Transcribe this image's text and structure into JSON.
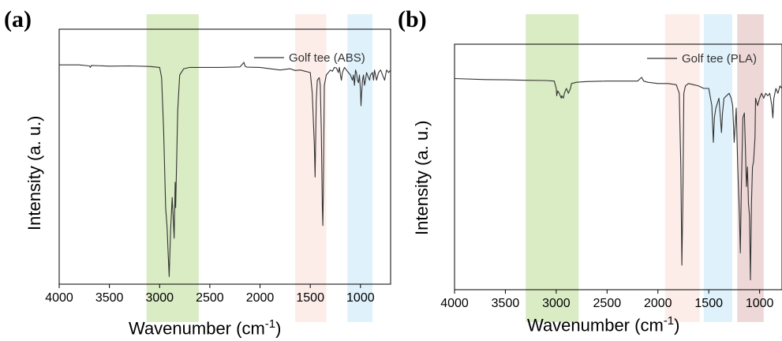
{
  "chart_data": [
    {
      "panel_label": "(a)",
      "type": "line",
      "xlabel": "Wavenumber (cm",
      "xlabel_sup": "-1",
      "xlabel_close": ")",
      "ylabel": "Intensity (a. u.)",
      "xlim": [
        4000,
        700
      ],
      "ylim": [
        0,
        1
      ],
      "x_ticks": [
        4000,
        3500,
        3000,
        2500,
        2000,
        1500,
        1000
      ],
      "grid": false,
      "legend": "top-right",
      "series": [
        {
          "name": "Golf tee (ABS)",
          "color": "#333333",
          "x": [
            4000,
            3800,
            3700,
            3690,
            3680,
            3500,
            3300,
            3100,
            3000,
            2980,
            2960,
            2940,
            2925,
            2915,
            2905,
            2890,
            2875,
            2865,
            2855,
            2845,
            2840,
            2820,
            2800,
            2760,
            2700,
            2600,
            2400,
            2200,
            2160,
            2150,
            2130,
            2000,
            1800,
            1700,
            1650,
            1600,
            1550,
            1500,
            1480,
            1460,
            1452,
            1440,
            1430,
            1410,
            1400,
            1390,
            1380,
            1375,
            1370,
            1360,
            1340,
            1300,
            1280,
            1260,
            1240,
            1220,
            1210,
            1200,
            1190,
            1180,
            1160,
            1140,
            1120,
            1100,
            1080,
            1070,
            1060,
            1050,
            1040,
            1030,
            1020,
            1010,
            1000,
            995,
            990,
            980,
            970,
            960,
            950,
            940,
            930,
            910,
            900,
            880,
            870,
            860,
            850,
            840,
            820,
            800,
            780,
            760,
            740,
            720,
            700
          ],
          "y": [
            0.86,
            0.86,
            0.856,
            0.85,
            0.858,
            0.855,
            0.856,
            0.854,
            0.85,
            0.81,
            0.6,
            0.3,
            0.22,
            0.12,
            0.03,
            0.22,
            0.34,
            0.26,
            0.18,
            0.4,
            0.3,
            0.68,
            0.82,
            0.845,
            0.85,
            0.85,
            0.85,
            0.852,
            0.87,
            0.855,
            0.851,
            0.85,
            0.84,
            0.845,
            0.838,
            0.84,
            0.835,
            0.83,
            0.75,
            0.55,
            0.42,
            0.72,
            0.8,
            0.81,
            0.78,
            0.6,
            0.3,
            0.23,
            0.35,
            0.78,
            0.82,
            0.84,
            0.835,
            0.85,
            0.848,
            0.83,
            0.85,
            0.82,
            0.8,
            0.83,
            0.85,
            0.84,
            0.83,
            0.82,
            0.8,
            0.82,
            0.78,
            0.84,
            0.83,
            0.8,
            0.79,
            0.82,
            0.76,
            0.7,
            0.74,
            0.8,
            0.82,
            0.78,
            0.8,
            0.83,
            0.82,
            0.8,
            0.82,
            0.83,
            0.8,
            0.84,
            0.82,
            0.8,
            0.83,
            0.84,
            0.82,
            0.8,
            0.84,
            0.83,
            0.84
          ]
        }
      ],
      "highlight_bands": [
        {
          "x_from": 3130,
          "x_to": 2610,
          "color": "#cde5b0"
        },
        {
          "x_from": 1650,
          "x_to": 1340,
          "color": "#fbe7e2"
        },
        {
          "x_from": 1130,
          "x_to": 880,
          "color": "#d4ecfa"
        }
      ]
    },
    {
      "panel_label": "(b)",
      "type": "line",
      "xlabel": "Wavenumber (cm",
      "xlabel_sup": "-1",
      "xlabel_close": ")",
      "ylabel": "Intensity (a. u.)",
      "xlim": [
        4000,
        780
      ],
      "ylim": [
        0,
        1
      ],
      "x_ticks": [
        4000,
        3500,
        3000,
        2500,
        2000,
        1500,
        1000
      ],
      "grid": false,
      "legend": "top-right",
      "series": [
        {
          "name": "Golf tee (PLA)",
          "color": "#333333",
          "x": [
            4000,
            3700,
            3500,
            3300,
            3100,
            3020,
            3000,
            2995,
            2985,
            2970,
            2950,
            2945,
            2930,
            2920,
            2900,
            2880,
            2860,
            2850,
            2800,
            2700,
            2500,
            2200,
            2160,
            2140,
            2100,
            2000,
            1900,
            1820,
            1790,
            1775,
            1765,
            1755,
            1745,
            1730,
            1700,
            1650,
            1600,
            1550,
            1500,
            1470,
            1455,
            1445,
            1430,
            1400,
            1385,
            1375,
            1365,
            1350,
            1300,
            1280,
            1265,
            1250,
            1230,
            1215,
            1200,
            1190,
            1180,
            1165,
            1150,
            1140,
            1130,
            1120,
            1110,
            1100,
            1090,
            1085,
            1080,
            1070,
            1060,
            1045,
            1040,
            1020,
            1000,
            980,
            960,
            940,
            920,
            900,
            880,
            870,
            860,
            840,
            820,
            800,
            780
          ],
          "y": [
            0.86,
            0.856,
            0.855,
            0.853,
            0.852,
            0.85,
            0.82,
            0.79,
            0.81,
            0.8,
            0.78,
            0.79,
            0.78,
            0.8,
            0.82,
            0.8,
            0.82,
            0.84,
            0.845,
            0.848,
            0.85,
            0.85,
            0.865,
            0.85,
            0.845,
            0.84,
            0.84,
            0.835,
            0.8,
            0.5,
            0.1,
            0.35,
            0.8,
            0.83,
            0.84,
            0.835,
            0.83,
            0.82,
            0.82,
            0.75,
            0.6,
            0.7,
            0.74,
            0.78,
            0.7,
            0.64,
            0.72,
            0.78,
            0.8,
            0.78,
            0.75,
            0.6,
            0.74,
            0.5,
            0.32,
            0.15,
            0.4,
            0.7,
            0.72,
            0.58,
            0.42,
            0.5,
            0.35,
            0.3,
            0.04,
            0.2,
            0.35,
            0.5,
            0.52,
            0.62,
            0.78,
            0.75,
            0.78,
            0.8,
            0.78,
            0.8,
            0.79,
            0.8,
            0.75,
            0.7,
            0.78,
            0.82,
            0.8,
            0.83,
            0.82
          ]
        }
      ],
      "highlight_bands": [
        {
          "x_from": 3300,
          "x_to": 2780,
          "color": "#cde5b0"
        },
        {
          "x_from": 1930,
          "x_to": 1590,
          "color": "#fbe7e2"
        },
        {
          "x_from": 1550,
          "x_to": 1270,
          "color": "#d4ecfa"
        },
        {
          "x_from": 1220,
          "x_to": 960,
          "color": "#e7cbca"
        }
      ]
    }
  ]
}
